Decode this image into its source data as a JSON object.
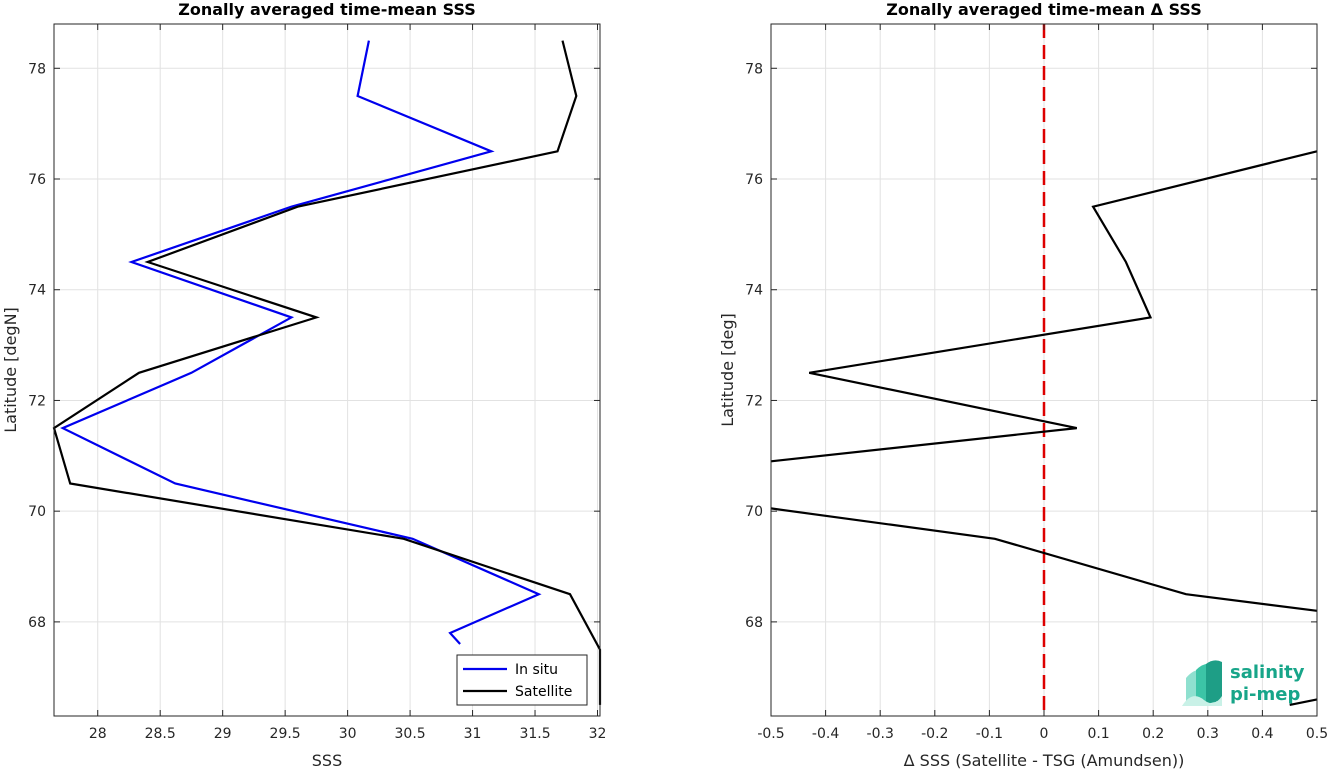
{
  "chart_data": [
    {
      "type": "line",
      "title": "Zonally averaged time-mean SSS",
      "xlabel": "SSS",
      "ylabel": "Latitude [degN]",
      "xlim": [
        27.65,
        32.02
      ],
      "ylim": [
        66.3,
        78.8
      ],
      "xticks": [
        28,
        28.5,
        29,
        29.5,
        30,
        30.5,
        31,
        31.5,
        32
      ],
      "xtick_labels": [
        "28",
        "28.5",
        "29",
        "29.5",
        "30",
        "30.5",
        "31",
        "31.5",
        "32"
      ],
      "yticks": [
        68,
        70,
        72,
        74,
        76,
        78
      ],
      "ytick_labels": [
        "68",
        "70",
        "72",
        "74",
        "76",
        "78"
      ],
      "grid": true,
      "legend": "bottom-right",
      "series": [
        {
          "name": "In situ",
          "color": "#0000ee",
          "x": [
            30.17,
            30.08,
            31.15,
            29.55,
            28.27,
            29.55,
            28.75,
            27.72,
            28.62,
            30.52,
            31.53,
            30.82,
            30.9
          ],
          "y": [
            78.5,
            77.5,
            76.5,
            75.5,
            74.5,
            73.5,
            72.5,
            71.5,
            70.5,
            69.5,
            68.5,
            67.8,
            67.6
          ]
        },
        {
          "name": "Satellite",
          "color": "#000000",
          "x": [
            31.72,
            31.83,
            31.68,
            29.6,
            28.4,
            29.75,
            28.33,
            27.65,
            27.78,
            30.45,
            31.78,
            32.02,
            32.02
          ],
          "y": [
            78.5,
            77.5,
            76.5,
            75.5,
            74.5,
            73.5,
            72.5,
            71.5,
            70.5,
            69.5,
            68.5,
            67.5,
            66.5
          ]
        }
      ]
    },
    {
      "type": "line",
      "title": "Zonally averaged time-mean Δ SSS",
      "xlabel": "Δ SSS (Satellite - TSG (Amundsen))",
      "ylabel": "Latitude [deg]",
      "xlim": [
        -0.5,
        0.5
      ],
      "ylim": [
        66.3,
        78.8
      ],
      "xticks": [
        -0.5,
        -0.4,
        -0.3,
        -0.2,
        -0.1,
        0,
        0.1,
        0.2,
        0.3,
        0.4,
        0.5
      ],
      "xtick_labels": [
        "-0.5",
        "-0.4",
        "-0.3",
        "-0.2",
        "-0.1",
        "0",
        "0.1",
        "0.2",
        "0.3",
        "0.4",
        "0.5"
      ],
      "yticks": [
        68,
        70,
        72,
        74,
        76,
        78
      ],
      "ytick_labels": [
        "68",
        "70",
        "72",
        "74",
        "76",
        "78"
      ],
      "grid": true,
      "reference_line": {
        "x": 0,
        "color": "#dd0000",
        "style": "dashed"
      },
      "series": [
        {
          "color": "#000000",
          "segments": [
            {
              "x": [
                0.5,
                0.09,
                0.15,
                0.195,
                -0.43,
                0.06,
                -0.5
              ],
              "y": [
                76.5,
                75.5,
                74.5,
                73.5,
                72.5,
                71.5,
                70.9
              ]
            },
            {
              "x": [
                -0.5,
                -0.09,
                0.26,
                0.5
              ],
              "y": [
                70.05,
                69.5,
                68.5,
                68.2
              ]
            },
            {
              "x": [
                0.45,
                0.5
              ],
              "y": [
                66.5,
                66.6
              ]
            }
          ]
        }
      ]
    }
  ],
  "logo": {
    "line1": "salinity",
    "line2": "pi-mep",
    "color": "#17a589"
  }
}
